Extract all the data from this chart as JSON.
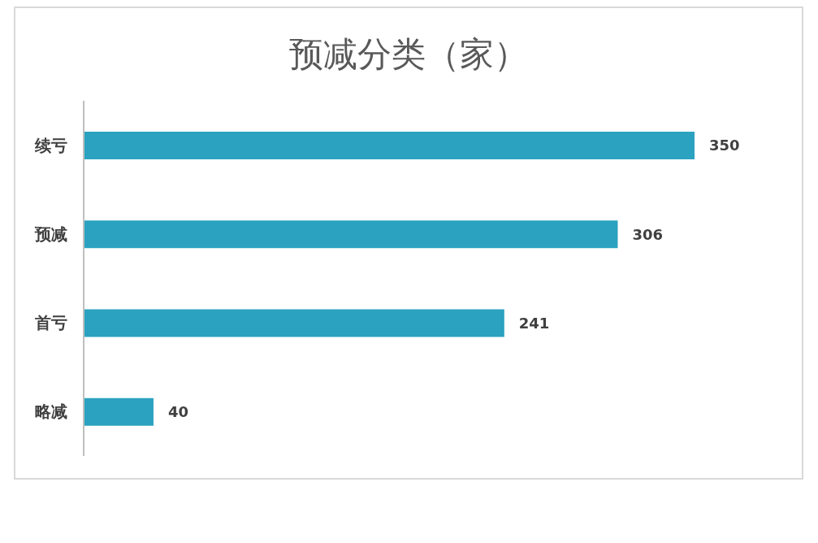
{
  "chart_data": {
    "type": "bar",
    "orientation": "horizontal",
    "title": "预减分类（家）",
    "categories": [
      "续亏",
      "预减",
      "首亏",
      "略减"
    ],
    "values": [
      350,
      306,
      241,
      40
    ],
    "color": "#2aa2c0",
    "data_labels": true,
    "grid": false,
    "legend": false
  }
}
